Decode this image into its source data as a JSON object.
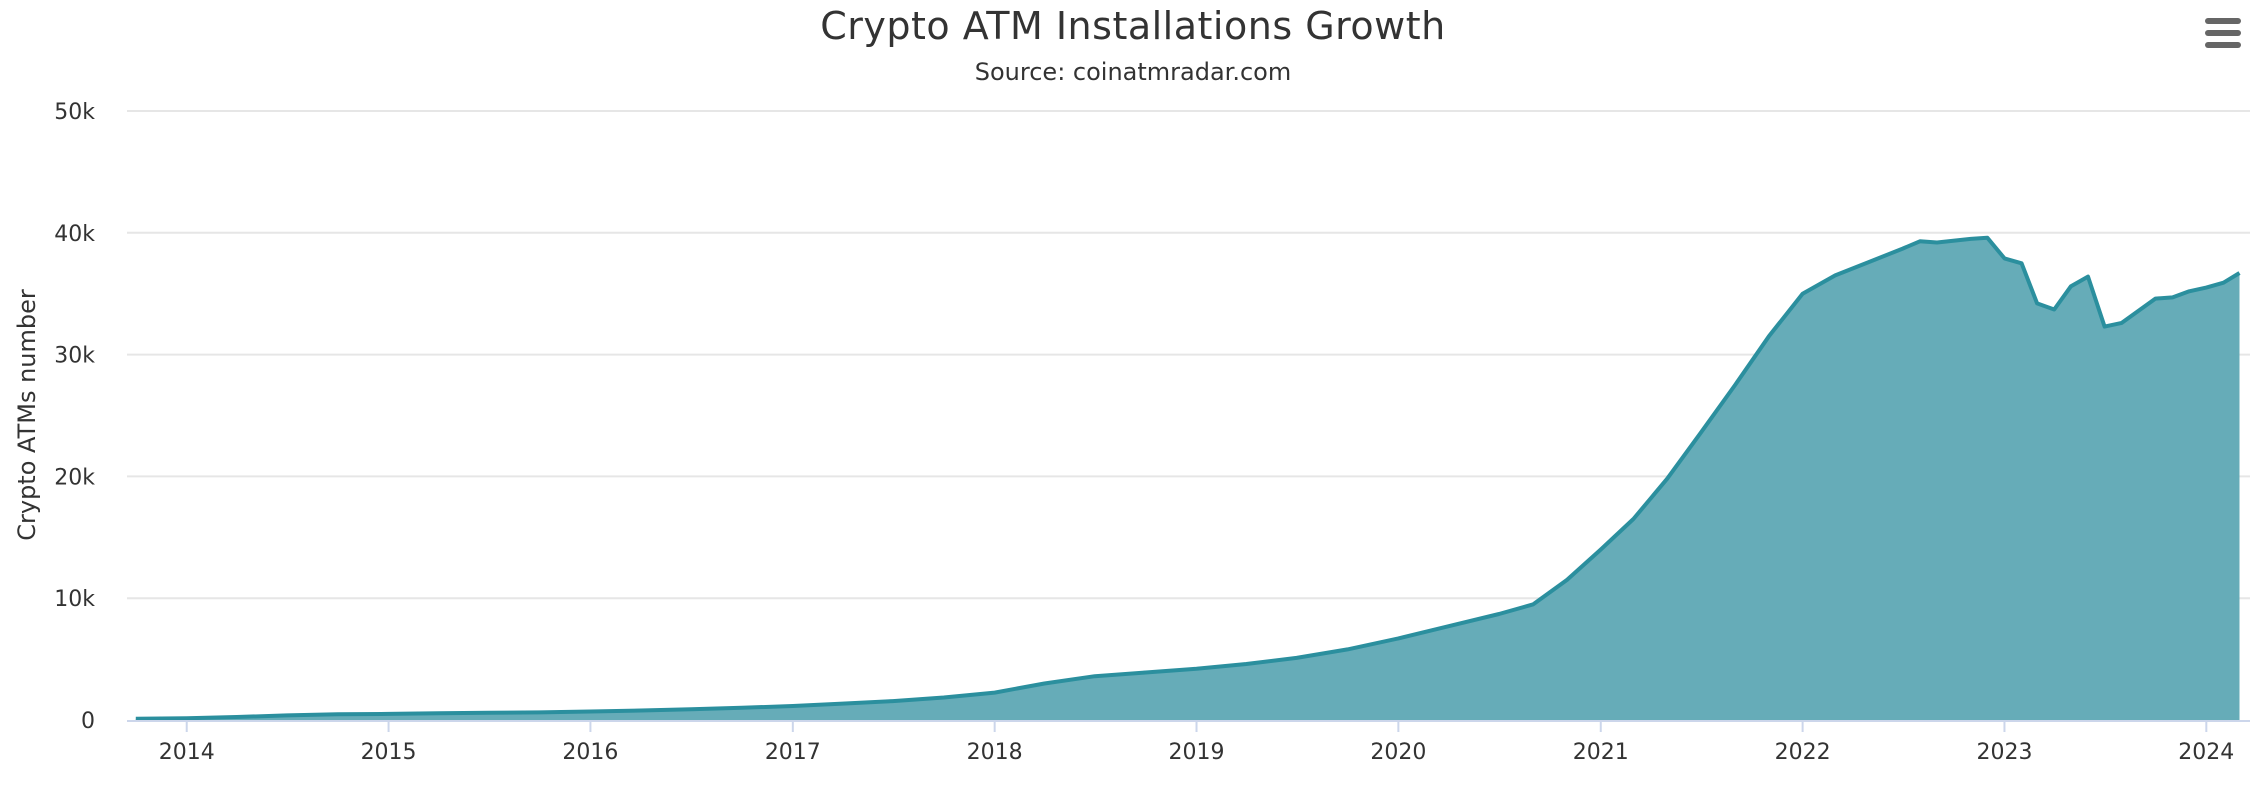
{
  "header": {
    "title": "Crypto ATM Installations Growth",
    "subtitle": "Source: coinatmradar.com"
  },
  "menu": {
    "icon": "hamburger-menu-icon"
  },
  "colors": {
    "area_fill": "#66acb8",
    "line": "#2b8f9e",
    "grid": "#e6e6e6",
    "text": "#333333"
  },
  "chart_data": {
    "type": "area",
    "title": "Crypto ATM Installations Growth",
    "subtitle": "Source: coinatmradar.com",
    "xlabel": "",
    "ylabel": "Crypto ATMs number",
    "ylim": [
      0,
      50000
    ],
    "xlim": [
      "2013-09-15",
      "2024-03-20"
    ],
    "yticks": [
      0,
      10000,
      20000,
      30000,
      40000,
      50000
    ],
    "ytick_labels": [
      "0",
      "10k",
      "20k",
      "30k",
      "40k",
      "50k"
    ],
    "xticks": [
      "2014-01-01",
      "2015-01-01",
      "2016-01-01",
      "2017-01-01",
      "2018-01-01",
      "2019-01-01",
      "2020-01-01",
      "2021-01-01",
      "2022-01-01",
      "2023-01-01",
      "2024-01-01"
    ],
    "xtick_labels": [
      "2014",
      "2015",
      "2016",
      "2017",
      "2018",
      "2019",
      "2020",
      "2021",
      "2022",
      "2023",
      "2024"
    ],
    "grid": true,
    "legend": "none",
    "series": [
      {
        "x": [
          "2013-10-01",
          "2014-01-01",
          "2014-04-01",
          "2014-07-01",
          "2014-10-01",
          "2015-01-01",
          "2015-04-01",
          "2015-07-01",
          "2015-10-01",
          "2016-01-01",
          "2016-04-01",
          "2016-07-01",
          "2016-10-01",
          "2017-01-01",
          "2017-04-01",
          "2017-07-01",
          "2017-10-01",
          "2018-01-01",
          "2018-04-01",
          "2018-07-01",
          "2018-10-01",
          "2019-01-01",
          "2019-04-01",
          "2019-07-01",
          "2019-10-01",
          "2020-01-01",
          "2020-04-01",
          "2020-07-01",
          "2020-09-01",
          "2020-11-01",
          "2021-01-01",
          "2021-03-01",
          "2021-05-01",
          "2021-07-01",
          "2021-09-01",
          "2021-11-01",
          "2022-01-01",
          "2022-03-01",
          "2022-05-01",
          "2022-07-01",
          "2022-08-01",
          "2022-09-01",
          "2022-11-01",
          "2022-12-01",
          "2023-01-01",
          "2023-02-01",
          "2023-03-01",
          "2023-04-01",
          "2023-05-01",
          "2023-06-01",
          "2023-07-01",
          "2023-08-01",
          "2023-10-01",
          "2023-11-01",
          "2023-12-01",
          "2024-01-01",
          "2024-02-01",
          "2024-03-01"
        ],
        "y": [
          100,
          150,
          250,
          380,
          480,
          500,
          560,
          600,
          620,
          700,
          780,
          880,
          1000,
          1150,
          1350,
          1550,
          1850,
          2250,
          3000,
          3600,
          3900,
          4200,
          4600,
          5100,
          5800,
          6700,
          7700,
          8700,
          9500,
          11500,
          14000,
          16500,
          19800,
          23600,
          27500,
          31500,
          35000,
          36500,
          37600,
          38700,
          39300,
          39200,
          39500,
          39600,
          37900,
          37500,
          34200,
          33700,
          35600,
          36400,
          32300,
          32600,
          34600,
          34700,
          35200,
          35500,
          35900,
          36700
        ]
      }
    ]
  }
}
